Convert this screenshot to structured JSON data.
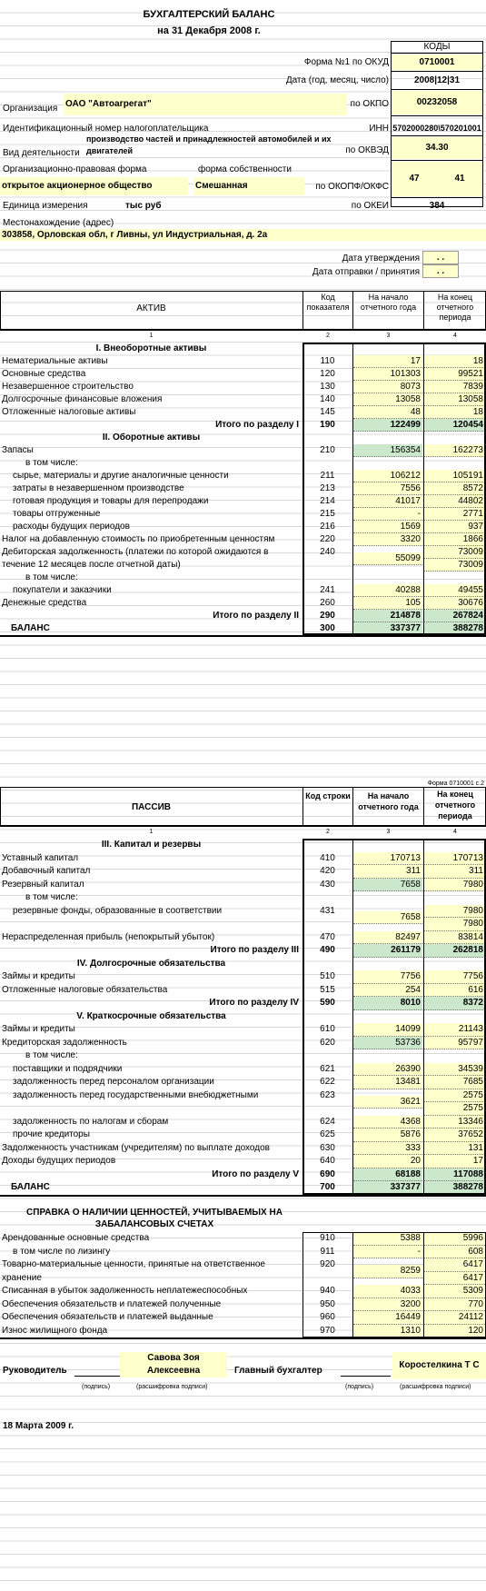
{
  "header": {
    "title": "БУХГАЛТЕРСКИЙ БАЛАНС",
    "date_line": "на 31 Декабря 2008 г.",
    "codes_label": "КОДЫ",
    "okud_label": "Форма №1 по ОКУД",
    "okud": "0710001",
    "date_label": "Дата (год, месяц, число)",
    "date_code": "2008|12|31",
    "org_label": "Организация",
    "org_name": "ОАО \"Автоагрегат\"",
    "okpo_label": "по ОКПО",
    "okpo": "00232058",
    "inn_label_left": "Идентификационный номер налогоплательщика",
    "inn_label": "ИНН",
    "inn": "5702000280\\570201001",
    "activity_label": "Вид деятельности",
    "activity_value": "производство частей и принадлежностей автомобилей и их двигателей",
    "okved_label": "по ОКВЭД",
    "okved": "34.30",
    "legal_form_label": "Организационно-правовая форма",
    "ownership_label": "форма собственности",
    "legal_form": "открытое акционерное общество",
    "ownership": "Смешанная",
    "okopf_label": "по ОКОПФ/ОКФС",
    "okopf": "47",
    "okfs": "41",
    "unit_label": "Единица измерения",
    "unit_value": "тыс руб",
    "okei_label": "по ОКЕИ",
    "okei": "384",
    "address_label": "Местонахождение (адрес)",
    "address": "303858, Орловская обл, г Ливны, ул Индустриальная, д. 2а",
    "approval_label": "Дата утверждения",
    "approval_value": ". .",
    "sent_label": "Дата отправки / принятия",
    "sent_value": ". ."
  },
  "asset_header": {
    "col_name": "АКТИВ",
    "col_code": "Код показателя",
    "col_start": "На начало отчетного года",
    "col_end": "На конец отчетного периода",
    "n1": "1",
    "n2": "2",
    "n3": "3",
    "n4": "4"
  },
  "assets": [
    {
      "label": "I. Внеоборотные активы",
      "kind": "section"
    },
    {
      "label": "Нематериальные активы",
      "code": "110",
      "start": "17",
      "end": "18"
    },
    {
      "label": "Основные средства",
      "code": "120",
      "start": "101303",
      "end": "99521"
    },
    {
      "label": "Незавершенное строительство",
      "code": "130",
      "start": "8073",
      "end": "7839"
    },
    {
      "label": "Долгосрочные финансовые вложения",
      "code": "140",
      "start": "13058",
      "end": "13058"
    },
    {
      "label": "Отложенные налоговые активы",
      "code": "145",
      "start": "48",
      "end": "18"
    },
    {
      "label": "Итого по разделу I",
      "code": "190",
      "start": "122499",
      "end": "120454",
      "kind": "total"
    },
    {
      "label": "II. Оборотные активы",
      "kind": "section"
    },
    {
      "label": "Запасы",
      "code": "210",
      "start": "156354",
      "end": "162273",
      "green": true
    },
    {
      "label": "в том числе:",
      "kind": "sub"
    },
    {
      "label": "сырье, материалы и другие аналогичные ценности",
      "code": "211",
      "start": "106212",
      "end": "105191",
      "indent": true
    },
    {
      "label": "затраты в незавершенном производстве",
      "code": "213",
      "start": "7556",
      "end": "8572",
      "indent": true
    },
    {
      "label": "готовая продукция и товары для перепродажи",
      "code": "214",
      "start": "41017",
      "end": "44802",
      "indent": true
    },
    {
      "label": "товары отгруженные",
      "code": "215",
      "start": "-",
      "end": "2771",
      "indent": true
    },
    {
      "label": "расходы будущих периодов",
      "code": "216",
      "start": "1569",
      "end": "937",
      "indent": true
    },
    {
      "label": "Налог на добавленную стоимость по приобретенным ценностям",
      "code": "220",
      "start": "3320",
      "end": "1866"
    },
    {
      "label": "Дебиторская задолженность (платежи по которой ожидаются в",
      "label2": "течение 12 месяцев после отчетной даты)",
      "code": "240",
      "start": "55099",
      "end": "73009",
      "end2": "73009",
      "kind": "double"
    },
    {
      "label": "в том числе:",
      "kind": "sub"
    },
    {
      "label": "покупатели и заказчики",
      "code": "241",
      "start": "40288",
      "end": "49455",
      "indent": true
    },
    {
      "label": "Денежные средства",
      "code": "260",
      "start": "105",
      "end": "30676"
    },
    {
      "label": "Итого по разделу II",
      "code": "290",
      "start": "214878",
      "end": "267824",
      "kind": "total"
    },
    {
      "label": "БАЛАНС",
      "code": "300",
      "start": "337377",
      "end": "388278",
      "kind": "balance"
    }
  ],
  "liab_form_note": "Форма 0710001 с.2",
  "liab_header": {
    "col_name": "ПАССИВ",
    "col_code": "Код строки",
    "col_start": "На начало отчетного года",
    "col_end": "На конец отчетного периода",
    "n1": "1",
    "n2": "2",
    "n3": "3",
    "n4": "4"
  },
  "liabilities": [
    {
      "label": "III. Капитал и резервы",
      "kind": "section"
    },
    {
      "label": "Уставный капитал",
      "code": "410",
      "start": "170713",
      "end": "170713"
    },
    {
      "label": "Добавочный капитал",
      "code": "420",
      "start": "311",
      "end": "311"
    },
    {
      "label": "Резервный капитал",
      "code": "430",
      "start": "7658",
      "end": "7980",
      "green": true
    },
    {
      "label": "в том числе:",
      "kind": "sub"
    },
    {
      "label": "резервные фонды, образованные в соответствии",
      "label2": "",
      "code": "431",
      "start": "7658",
      "end": "7980",
      "end2": "7980",
      "kind": "double",
      "indent": true
    },
    {
      "label": "Нераспределенная прибыль (непокрытый убыток)",
      "code": "470",
      "start": "82497",
      "end": "83814"
    },
    {
      "label": "Итого по разделу III",
      "code": "490",
      "start": "261179",
      "end": "262818",
      "kind": "total"
    },
    {
      "label": "IV. Долгосрочные обязательства",
      "kind": "section"
    },
    {
      "label": "Займы и кредиты",
      "code": "510",
      "start": "7756",
      "end": "7756"
    },
    {
      "label": "Отложенные налоговые обязательства",
      "code": "515",
      "start": "254",
      "end": "616"
    },
    {
      "label": "Итого по разделу IV",
      "code": "590",
      "start": "8010",
      "end": "8372",
      "kind": "total"
    },
    {
      "label": "V. Краткосрочные обязательства",
      "kind": "section"
    },
    {
      "label": "Займы и кредиты",
      "code": "610",
      "start": "14099",
      "end": "21143"
    },
    {
      "label": "Кредиторская задолженность",
      "code": "620",
      "start": "53736",
      "end": "95797",
      "green": true
    },
    {
      "label": "в том числе:",
      "kind": "sub"
    },
    {
      "label": "поставщики и подрядчики",
      "code": "621",
      "start": "26390",
      "end": "34539",
      "indent": true
    },
    {
      "label": "задолженность перед персоналом организации",
      "code": "622",
      "start": "13481",
      "end": "7685",
      "indent": true
    },
    {
      "label": "задолженность перед государственными внебюджетными",
      "label2": "",
      "code": "623",
      "start": "3621",
      "end": "2575",
      "end2": "2575",
      "kind": "double",
      "indent": true
    },
    {
      "label": "задолженность по налогам и сборам",
      "code": "624",
      "start": "4368",
      "end": "13346",
      "indent": true
    },
    {
      "label": "прочие кредиторы",
      "code": "625",
      "start": "5876",
      "end": "37652",
      "indent": true
    },
    {
      "label": "Задолженность участникам (учредителям) по выплате доходов",
      "code": "630",
      "start": "333",
      "end": "131"
    },
    {
      "label": "Доходы будущих периодов",
      "code": "640",
      "start": "20",
      "end": "17"
    },
    {
      "label": "Итого по разделу V",
      "code": "690",
      "start": "68188",
      "end": "117088",
      "kind": "total"
    },
    {
      "label": "БАЛАНС",
      "code": "700",
      "start": "337377",
      "end": "388278",
      "kind": "balance"
    }
  ],
  "offbal": {
    "title1": "СПРАВКА О НАЛИЧИИ ЦЕННОСТЕЙ, УЧИТЫВАЕМЫХ НА",
    "title2": "ЗАБАЛАНСОВЫХ СЧЕТАХ",
    "rows": [
      {
        "label": "Арендованные основные средства",
        "code": "910",
        "start": "5388",
        "end": "5996"
      },
      {
        "label": "в том числе по лизингу",
        "code": "911",
        "start": "-",
        "end": "608",
        "indent": true
      },
      {
        "label": "Товарно-материальные ценности, принятые на ответственное",
        "label2": "хранение",
        "code": "920",
        "start": "8259",
        "end": "6417",
        "end2": "6417",
        "kind": "double"
      },
      {
        "label": "Списанная в убыток задолженность неплатежеспособных",
        "code": "940",
        "start": "4033",
        "end": "5309"
      },
      {
        "label": "Обеспечения обязательств и платежей полученные",
        "code": "950",
        "start": "3200",
        "end": "770"
      },
      {
        "label": "Обеспечения обязательств и платежей выданные",
        "code": "960",
        "start": "16449",
        "end": "24112"
      },
      {
        "label": "Износ жилищного фонда",
        "code": "970",
        "start": "1310",
        "end": "120"
      }
    ]
  },
  "signatures": {
    "head_label": "Руководитель",
    "head_name1": "Савова Зоя",
    "head_name2": "Алексеевна",
    "sign_note": "(подпись)",
    "decode_note": "(расшифровка подписи)",
    "chief_label": "Главный бухгалтер",
    "chief_name": "Коростелкина Т С",
    "date": "18 Марта 2009 г."
  }
}
